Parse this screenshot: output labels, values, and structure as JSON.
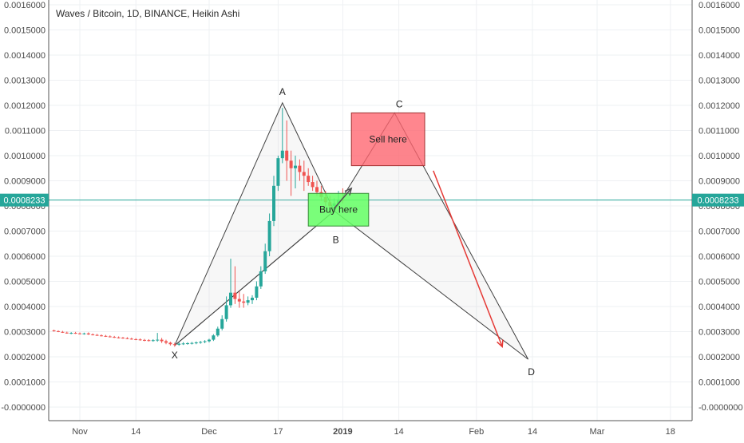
{
  "chart_data": {
    "type": "candlestick",
    "title": "Waves / Bitcoin, 1D, BINANCE, Heikin Ashi",
    "xlabel": "",
    "ylabel": "",
    "ylim": [
      -0.0,
      0.0016
    ],
    "y_ticks": [
      "0.0016000",
      "0.0015000",
      "0.0014000",
      "0.0013000",
      "0.0012000",
      "0.0011000",
      "0.0010000",
      "0.0009000",
      "0.0008000",
      "0.0007000",
      "0.0006000",
      "0.0005000",
      "0.0004000",
      "0.0003000",
      "0.0002000",
      "0.0001000",
      "-0.0000000"
    ],
    "y_tick_values": [
      0.0016,
      0.0015,
      0.0014,
      0.0013,
      0.0012,
      0.0011,
      0.001,
      0.0009,
      0.0008,
      0.0007,
      0.0006,
      0.0005,
      0.0004,
      0.0003,
      0.0002,
      0.0001,
      0.0
    ],
    "x_ticks": [
      {
        "label": "Nov",
        "day": 0
      },
      {
        "label": "14",
        "day": 13
      },
      {
        "label": "Dec",
        "day": 30
      },
      {
        "label": "17",
        "day": 46
      },
      {
        "label": "2019",
        "day": 61
      },
      {
        "label": "14",
        "day": 74
      },
      {
        "label": "Feb",
        "day": 92
      },
      {
        "label": "14",
        "day": 105
      },
      {
        "label": "Mar",
        "day": 120
      },
      {
        "label": "18",
        "day": 137
      }
    ],
    "current_price": {
      "label": "0.0008233",
      "value": 0.0008233
    },
    "pattern_points": [
      {
        "label": "X",
        "day": 22,
        "value": 0.000245
      },
      {
        "label": "A",
        "day": 47,
        "value": 0.00121
      },
      {
        "label": "B",
        "day": 59,
        "value": 0.00078
      },
      {
        "label": "C",
        "day": 73,
        "value": 0.00117
      },
      {
        "label": "D",
        "day": 104,
        "value": 0.00019
      }
    ],
    "zones": [
      {
        "label": "Sell here",
        "day_start": 63,
        "day_end": 80,
        "top": 0.00117,
        "bottom": 0.00096
      },
      {
        "label": "Buy here",
        "day_start": 53,
        "day_end": 67,
        "top": 0.00085,
        "bottom": 0.00072
      }
    ],
    "arrows": [
      {
        "from_day": 59,
        "from_value": 0.00079,
        "to_day": 63,
        "to_value": 0.00087,
        "color": "#505050"
      },
      {
        "from_day": 82,
        "from_value": 0.00094,
        "to_day": 98,
        "to_value": 0.00024,
        "color": "#e53935"
      }
    ],
    "colors": {
      "up": "#26a69a",
      "down": "#ef5350",
      "sell_zone": "#ff6b6b",
      "buy_zone": "#66ff66",
      "price_line": "#26a69a"
    },
    "candles": [
      {
        "day": -6,
        "o": 0.000305,
        "h": 0.000308,
        "l": 0.0003,
        "c": 0.000302
      },
      {
        "day": -5,
        "o": 0.000302,
        "h": 0.000305,
        "l": 0.000298,
        "c": 0.000299
      },
      {
        "day": -4,
        "o": 0.000299,
        "h": 0.000303,
        "l": 0.000295,
        "c": 0.000296
      },
      {
        "day": -3,
        "o": 0.000296,
        "h": 0.0003,
        "l": 0.000292,
        "c": 0.000293
      },
      {
        "day": -2,
        "o": 0.000293,
        "h": 0.000298,
        "l": 0.00029,
        "c": 0.000295
      },
      {
        "day": -1,
        "o": 0.000295,
        "h": 0.000299,
        "l": 0.000291,
        "c": 0.000293
      },
      {
        "day": 0,
        "o": 0.000293,
        "h": 0.000297,
        "l": 0.000289,
        "c": 0.000291
      },
      {
        "day": 1,
        "o": 0.000291,
        "h": 0.000296,
        "l": 0.000288,
        "c": 0.000293
      },
      {
        "day": 2,
        "o": 0.000293,
        "h": 0.000297,
        "l": 0.000287,
        "c": 0.000289
      },
      {
        "day": 3,
        "o": 0.000289,
        "h": 0.000293,
        "l": 0.000285,
        "c": 0.000287
      },
      {
        "day": 4,
        "o": 0.000287,
        "h": 0.000291,
        "l": 0.000283,
        "c": 0.000285
      },
      {
        "day": 5,
        "o": 0.000285,
        "h": 0.000289,
        "l": 0.000281,
        "c": 0.000283
      },
      {
        "day": 6,
        "o": 0.000283,
        "h": 0.000287,
        "l": 0.000279,
        "c": 0.000281
      },
      {
        "day": 7,
        "o": 0.000281,
        "h": 0.000285,
        "l": 0.000277,
        "c": 0.000279
      },
      {
        "day": 8,
        "o": 0.000279,
        "h": 0.000283,
        "l": 0.000275,
        "c": 0.000277
      },
      {
        "day": 9,
        "o": 0.000277,
        "h": 0.000281,
        "l": 0.000273,
        "c": 0.000276
      },
      {
        "day": 10,
        "o": 0.000276,
        "h": 0.000279,
        "l": 0.000272,
        "c": 0.000274
      },
      {
        "day": 11,
        "o": 0.000274,
        "h": 0.000278,
        "l": 0.00027,
        "c": 0.000272
      },
      {
        "day": 12,
        "o": 0.000272,
        "h": 0.000276,
        "l": 0.000268,
        "c": 0.00027
      },
      {
        "day": 13,
        "o": 0.00027,
        "h": 0.000274,
        "l": 0.000266,
        "c": 0.000269
      },
      {
        "day": 14,
        "o": 0.000269,
        "h": 0.000273,
        "l": 0.000264,
        "c": 0.000267
      },
      {
        "day": 15,
        "o": 0.000267,
        "h": 0.000271,
        "l": 0.000262,
        "c": 0.000266
      },
      {
        "day": 16,
        "o": 0.000266,
        "h": 0.00027,
        "l": 0.000261,
        "c": 0.000265
      },
      {
        "day": 17,
        "o": 0.000265,
        "h": 0.00027,
        "l": 0.00026,
        "c": 0.000266
      },
      {
        "day": 18,
        "o": 0.000266,
        "h": 0.000295,
        "l": 0.00026,
        "c": 0.000268
      },
      {
        "day": 19,
        "o": 0.000268,
        "h": 0.000275,
        "l": 0.000255,
        "c": 0.000262
      },
      {
        "day": 20,
        "o": 0.000262,
        "h": 0.000268,
        "l": 0.00025,
        "c": 0.000256
      },
      {
        "day": 21,
        "o": 0.000256,
        "h": 0.00026,
        "l": 0.000245,
        "c": 0.00025
      },
      {
        "day": 22,
        "o": 0.00025,
        "h": 0.000256,
        "l": 0.00024,
        "c": 0.000248
      },
      {
        "day": 23,
        "o": 0.000248,
        "h": 0.000256,
        "l": 0.000244,
        "c": 0.000252
      },
      {
        "day": 24,
        "o": 0.000252,
        "h": 0.000258,
        "l": 0.000247,
        "c": 0.000253
      },
      {
        "day": 25,
        "o": 0.000253,
        "h": 0.000258,
        "l": 0.000248,
        "c": 0.000254
      },
      {
        "day": 26,
        "o": 0.000254,
        "h": 0.000259,
        "l": 0.000249,
        "c": 0.000255
      },
      {
        "day": 27,
        "o": 0.000255,
        "h": 0.000261,
        "l": 0.00025,
        "c": 0.000257
      },
      {
        "day": 28,
        "o": 0.000257,
        "h": 0.000263,
        "l": 0.000252,
        "c": 0.000259
      },
      {
        "day": 29,
        "o": 0.000259,
        "h": 0.000266,
        "l": 0.000254,
        "c": 0.000262
      },
      {
        "day": 30,
        "o": 0.000262,
        "h": 0.000272,
        "l": 0.000257,
        "c": 0.000268
      },
      {
        "day": 31,
        "o": 0.000268,
        "h": 0.00029,
        "l": 0.000263,
        "c": 0.000285
      },
      {
        "day": 32,
        "o": 0.000285,
        "h": 0.00032,
        "l": 0.00028,
        "c": 0.000312
      },
      {
        "day": 33,
        "o": 0.000312,
        "h": 0.000365,
        "l": 0.000305,
        "c": 0.00035
      },
      {
        "day": 34,
        "o": 0.00035,
        "h": 0.00044,
        "l": 0.00034,
        "c": 0.000405
      },
      {
        "day": 35,
        "o": 0.000405,
        "h": 0.00059,
        "l": 0.000395,
        "c": 0.000455
      },
      {
        "day": 36,
        "o": 0.000455,
        "h": 0.00056,
        "l": 0.00041,
        "c": 0.00043
      },
      {
        "day": 37,
        "o": 0.00043,
        "h": 0.00046,
        "l": 0.000395,
        "c": 0.00042
      },
      {
        "day": 38,
        "o": 0.00042,
        "h": 0.00045,
        "l": 0.000395,
        "c": 0.000415
      },
      {
        "day": 39,
        "o": 0.000415,
        "h": 0.00044,
        "l": 0.000405,
        "c": 0.000425
      },
      {
        "day": 40,
        "o": 0.000425,
        "h": 0.000445,
        "l": 0.00041,
        "c": 0.000435
      },
      {
        "day": 41,
        "o": 0.000435,
        "h": 0.0005,
        "l": 0.000425,
        "c": 0.00048
      },
      {
        "day": 42,
        "o": 0.00048,
        "h": 0.00056,
        "l": 0.00047,
        "c": 0.00054
      },
      {
        "day": 43,
        "o": 0.00054,
        "h": 0.00065,
        "l": 0.00053,
        "c": 0.00062
      },
      {
        "day": 44,
        "o": 0.00062,
        "h": 0.00077,
        "l": 0.0006,
        "c": 0.00074
      },
      {
        "day": 45,
        "o": 0.00074,
        "h": 0.00092,
        "l": 0.00072,
        "c": 0.00088
      },
      {
        "day": 46,
        "o": 0.00088,
        "h": 0.001,
        "l": 0.00086,
        "c": 0.00099
      },
      {
        "day": 47,
        "o": 0.00099,
        "h": 0.00119,
        "l": 0.00097,
        "c": 0.00102
      },
      {
        "day": 48,
        "o": 0.00102,
        "h": 0.00114,
        "l": 0.0009,
        "c": 0.00098
      },
      {
        "day": 49,
        "o": 0.00098,
        "h": 0.00102,
        "l": 0.00084,
        "c": 0.00095
      },
      {
        "day": 50,
        "o": 0.00095,
        "h": 0.001,
        "l": 0.00087,
        "c": 0.00096
      },
      {
        "day": 51,
        "o": 0.00096,
        "h": 0.000985,
        "l": 0.0009,
        "c": 0.000935
      },
      {
        "day": 52,
        "o": 0.000935,
        "h": 0.00098,
        "l": 0.00086,
        "c": 0.00092
      },
      {
        "day": 53,
        "o": 0.00092,
        "h": 0.00095,
        "l": 0.00088,
        "c": 0.000895
      },
      {
        "day": 54,
        "o": 0.000895,
        "h": 0.00092,
        "l": 0.00086,
        "c": 0.000875
      },
      {
        "day": 55,
        "o": 0.000875,
        "h": 0.0009,
        "l": 0.00084,
        "c": 0.000855
      },
      {
        "day": 56,
        "o": 0.000855,
        "h": 0.00088,
        "l": 0.00082,
        "c": 0.000835
      },
      {
        "day": 57,
        "o": 0.000835,
        "h": 0.00086,
        "l": 0.0008,
        "c": 0.000815
      },
      {
        "day": 58,
        "o": 0.000815,
        "h": 0.00084,
        "l": 0.00079,
        "c": 0.0008
      },
      {
        "day": 59,
        "o": 0.0008,
        "h": 0.00083,
        "l": 0.00078,
        "c": 0.00081
      },
      {
        "day": 60,
        "o": 0.00081,
        "h": 0.00086,
        "l": 0.0008,
        "c": 0.000825
      },
      {
        "day": 61,
        "o": 0.000825,
        "h": 0.00087,
        "l": 0.00081,
        "c": 0.000823
      }
    ]
  }
}
